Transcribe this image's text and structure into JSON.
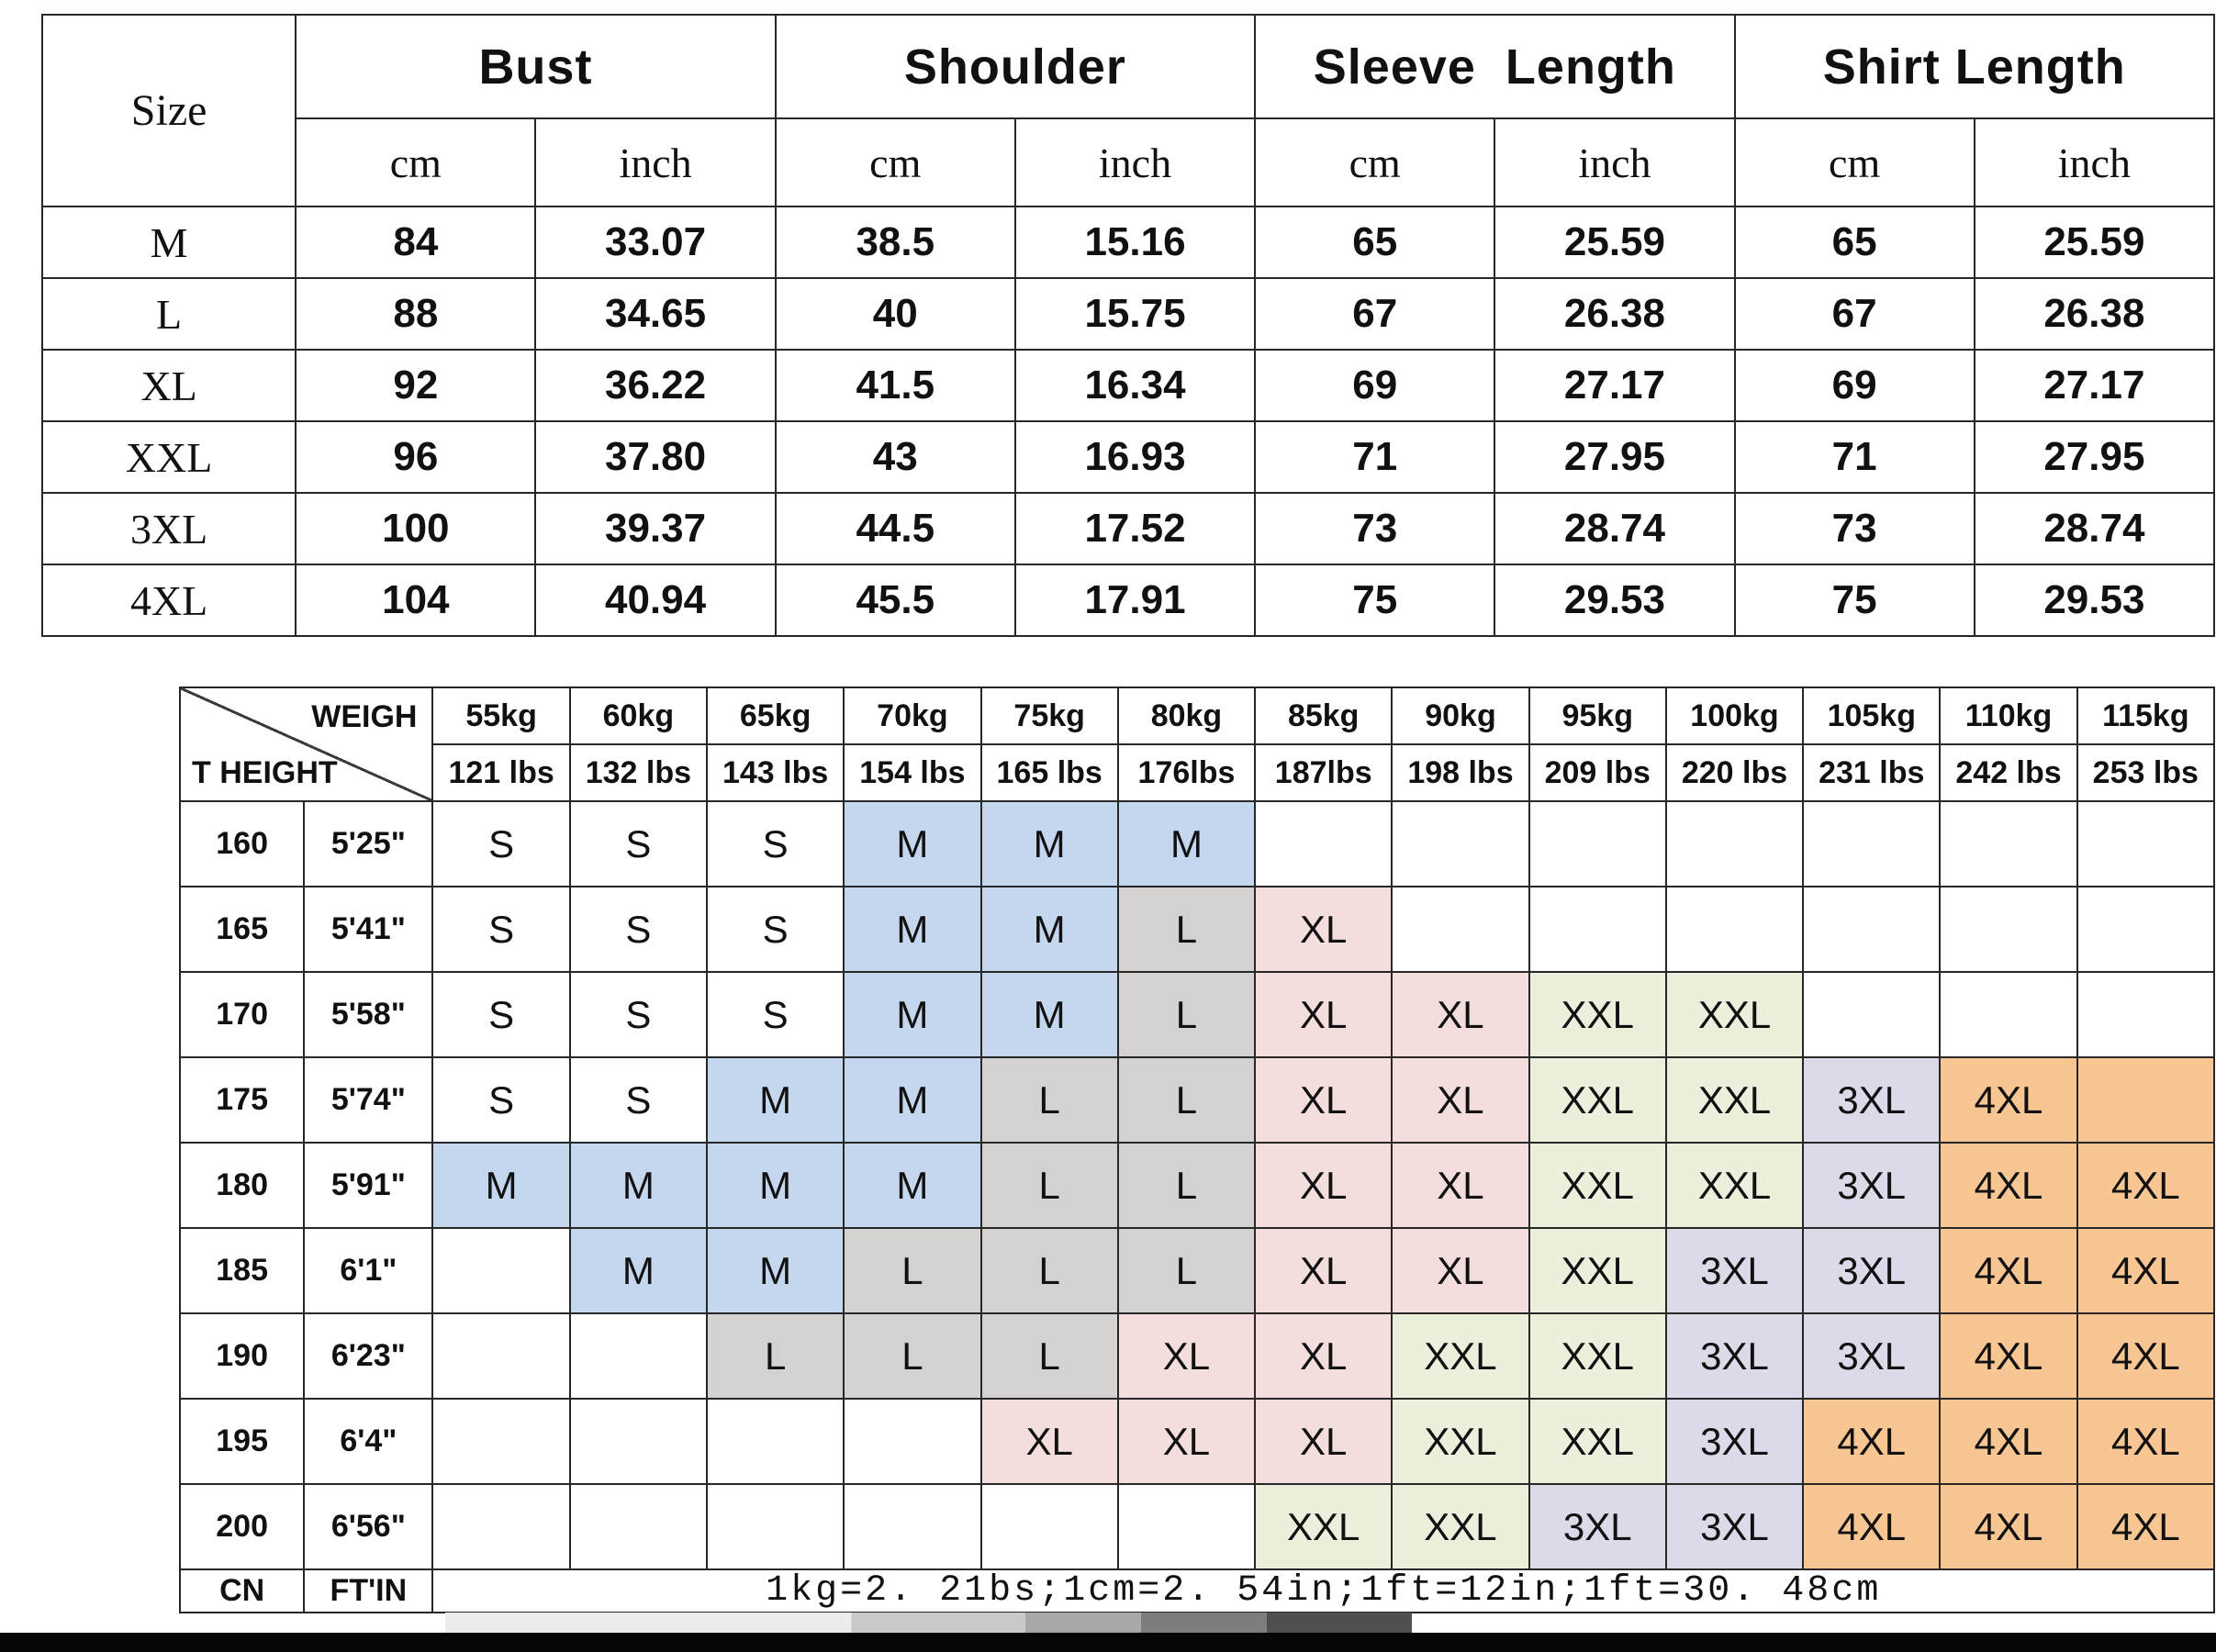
{
  "colors": {
    "blue": "#c5d7ee",
    "gray": "#d3d2d0",
    "pink": "#f3dedd",
    "green": "#ebf0dc",
    "lav": "#dcdae9",
    "orange": "#f7c693"
  },
  "size_table": {
    "corner_label": "Size",
    "groups": [
      "Bust",
      "Shoulder",
      "Sleeve  Length",
      "Shirt Length"
    ],
    "units": [
      "cm",
      "inch",
      "cm",
      "inch",
      "cm",
      "inch",
      "cm",
      "inch"
    ],
    "rows": [
      {
        "size": "M",
        "values": [
          "84",
          "33.07",
          "38.5",
          "15.16",
          "65",
          "25.59",
          "65",
          "25.59"
        ]
      },
      {
        "size": "L",
        "values": [
          "88",
          "34.65",
          "40",
          "15.75",
          "67",
          "26.38",
          "67",
          "26.38"
        ]
      },
      {
        "size": "XL",
        "values": [
          "92",
          "36.22",
          "41.5",
          "16.34",
          "69",
          "27.17",
          "69",
          "27.17"
        ]
      },
      {
        "size": "XXL",
        "values": [
          "96",
          "37.80",
          "43",
          "16.93",
          "71",
          "27.95",
          "71",
          "27.95"
        ]
      },
      {
        "size": "3XL",
        "values": [
          "100",
          "39.37",
          "44.5",
          "17.52",
          "73",
          "28.74",
          "73",
          "28.74"
        ]
      },
      {
        "size": "4XL",
        "values": [
          "104",
          "40.94",
          "45.5",
          "17.91",
          "75",
          "29.53",
          "75",
          "29.53"
        ]
      }
    ]
  },
  "fit_table": {
    "corner_top": "WEIGH",
    "corner_bottom": "T HEIGHT",
    "weights_kg": [
      "55kg",
      "60kg",
      "65kg",
      "70kg",
      "75kg",
      "80kg",
      "85kg",
      "90kg",
      "95kg",
      "100kg",
      "105kg",
      "110kg",
      "115kg"
    ],
    "weights_lbs": [
      "121 lbs",
      "132 lbs",
      "143 lbs",
      "154 lbs",
      "165 lbs",
      "176lbs",
      "187lbs",
      "198 lbs",
      "209 lbs",
      "220 lbs",
      "231 lbs",
      "242 lbs",
      "253 lbs"
    ],
    "rows": [
      {
        "height_cm": "160",
        "height_ft": "5'25\"",
        "cells": [
          {
            "t": "S",
            "c": ""
          },
          {
            "t": "S",
            "c": ""
          },
          {
            "t": "S",
            "c": ""
          },
          {
            "t": "M",
            "c": "blue"
          },
          {
            "t": "M",
            "c": "blue"
          },
          {
            "t": "M",
            "c": "blue"
          },
          {
            "t": "",
            "c": ""
          },
          {
            "t": "",
            "c": ""
          },
          {
            "t": "",
            "c": ""
          },
          {
            "t": "",
            "c": ""
          },
          {
            "t": "",
            "c": ""
          },
          {
            "t": "",
            "c": ""
          },
          {
            "t": "",
            "c": ""
          }
        ]
      },
      {
        "height_cm": "165",
        "height_ft": "5'41\"",
        "cells": [
          {
            "t": "S",
            "c": ""
          },
          {
            "t": "S",
            "c": ""
          },
          {
            "t": "S",
            "c": ""
          },
          {
            "t": "M",
            "c": "blue"
          },
          {
            "t": "M",
            "c": "blue"
          },
          {
            "t": "L",
            "c": "gray"
          },
          {
            "t": "XL",
            "c": "pink"
          },
          {
            "t": "",
            "c": ""
          },
          {
            "t": "",
            "c": ""
          },
          {
            "t": "",
            "c": ""
          },
          {
            "t": "",
            "c": ""
          },
          {
            "t": "",
            "c": ""
          },
          {
            "t": "",
            "c": ""
          }
        ]
      },
      {
        "height_cm": "170",
        "height_ft": "5'58\"",
        "cells": [
          {
            "t": "S",
            "c": ""
          },
          {
            "t": "S",
            "c": ""
          },
          {
            "t": "S",
            "c": ""
          },
          {
            "t": "M",
            "c": "blue"
          },
          {
            "t": "M",
            "c": "blue"
          },
          {
            "t": "L",
            "c": "gray"
          },
          {
            "t": "XL",
            "c": "pink"
          },
          {
            "t": "XL",
            "c": "pink"
          },
          {
            "t": "XXL",
            "c": "green"
          },
          {
            "t": "XXL",
            "c": "green"
          },
          {
            "t": "",
            "c": ""
          },
          {
            "t": "",
            "c": ""
          },
          {
            "t": "",
            "c": ""
          }
        ]
      },
      {
        "height_cm": "175",
        "height_ft": "5'74\"",
        "cells": [
          {
            "t": "S",
            "c": ""
          },
          {
            "t": "S",
            "c": ""
          },
          {
            "t": "M",
            "c": "blue"
          },
          {
            "t": "M",
            "c": "blue"
          },
          {
            "t": "L",
            "c": "gray"
          },
          {
            "t": "L",
            "c": "gray"
          },
          {
            "t": "XL",
            "c": "pink"
          },
          {
            "t": "XL",
            "c": "pink"
          },
          {
            "t": "XXL",
            "c": "green"
          },
          {
            "t": "XXL",
            "c": "green"
          },
          {
            "t": "3XL",
            "c": "lav"
          },
          {
            "t": "4XL",
            "c": "orange"
          },
          {
            "t": "",
            "c": "orange"
          }
        ]
      },
      {
        "height_cm": "180",
        "height_ft": "5'91\"",
        "cells": [
          {
            "t": "M",
            "c": "blue"
          },
          {
            "t": "M",
            "c": "blue"
          },
          {
            "t": "M",
            "c": "blue"
          },
          {
            "t": "M",
            "c": "blue"
          },
          {
            "t": "L",
            "c": "gray"
          },
          {
            "t": "L",
            "c": "gray"
          },
          {
            "t": "XL",
            "c": "pink"
          },
          {
            "t": "XL",
            "c": "pink"
          },
          {
            "t": "XXL",
            "c": "green"
          },
          {
            "t": "XXL",
            "c": "green"
          },
          {
            "t": "3XL",
            "c": "lav"
          },
          {
            "t": "4XL",
            "c": "orange"
          },
          {
            "t": "4XL",
            "c": "orange"
          }
        ]
      },
      {
        "height_cm": "185",
        "height_ft": "6'1\"",
        "cells": [
          {
            "t": "",
            "c": ""
          },
          {
            "t": "M",
            "c": "blue"
          },
          {
            "t": "M",
            "c": "blue"
          },
          {
            "t": "L",
            "c": "gray"
          },
          {
            "t": "L",
            "c": "gray"
          },
          {
            "t": "L",
            "c": "gray"
          },
          {
            "t": "XL",
            "c": "pink"
          },
          {
            "t": "XL",
            "c": "pink"
          },
          {
            "t": "XXL",
            "c": "green"
          },
          {
            "t": "3XL",
            "c": "lav"
          },
          {
            "t": "3XL",
            "c": "lav"
          },
          {
            "t": "4XL",
            "c": "orange"
          },
          {
            "t": "4XL",
            "c": "orange"
          }
        ]
      },
      {
        "height_cm": "190",
        "height_ft": "6'23\"",
        "cells": [
          {
            "t": "",
            "c": ""
          },
          {
            "t": "",
            "c": ""
          },
          {
            "t": "L",
            "c": "gray"
          },
          {
            "t": "L",
            "c": "gray"
          },
          {
            "t": "L",
            "c": "gray"
          },
          {
            "t": "XL",
            "c": "pink"
          },
          {
            "t": "XL",
            "c": "pink"
          },
          {
            "t": "XXL",
            "c": "green"
          },
          {
            "t": "XXL",
            "c": "green"
          },
          {
            "t": "3XL",
            "c": "lav"
          },
          {
            "t": "3XL",
            "c": "lav"
          },
          {
            "t": "4XL",
            "c": "orange"
          },
          {
            "t": "4XL",
            "c": "orange"
          }
        ]
      },
      {
        "height_cm": "195",
        "height_ft": "6'4\"",
        "cells": [
          {
            "t": "",
            "c": ""
          },
          {
            "t": "",
            "c": ""
          },
          {
            "t": "",
            "c": ""
          },
          {
            "t": "",
            "c": ""
          },
          {
            "t": "XL",
            "c": "pink"
          },
          {
            "t": "XL",
            "c": "pink"
          },
          {
            "t": "XL",
            "c": "pink"
          },
          {
            "t": "XXL",
            "c": "green"
          },
          {
            "t": "XXL",
            "c": "green"
          },
          {
            "t": "3XL",
            "c": "lav"
          },
          {
            "t": "4XL",
            "c": "orange"
          },
          {
            "t": "4XL",
            "c": "orange"
          },
          {
            "t": "4XL",
            "c": "orange"
          }
        ]
      },
      {
        "height_cm": "200",
        "height_ft": "6'56\"",
        "cells": [
          {
            "t": "",
            "c": ""
          },
          {
            "t": "",
            "c": ""
          },
          {
            "t": "",
            "c": ""
          },
          {
            "t": "",
            "c": ""
          },
          {
            "t": "",
            "c": ""
          },
          {
            "t": "",
            "c": ""
          },
          {
            "t": "XXL",
            "c": "green"
          },
          {
            "t": "XXL",
            "c": "green"
          },
          {
            "t": "3XL",
            "c": "lav"
          },
          {
            "t": "3XL",
            "c": "lav"
          },
          {
            "t": "4XL",
            "c": "orange"
          },
          {
            "t": "4XL",
            "c": "orange"
          },
          {
            "t": "4XL",
            "c": "orange"
          }
        ]
      }
    ],
    "footer": {
      "cn": "CN",
      "ftin": "FT'IN",
      "note": "1kg=2. 21bs;1cm=2. 54in;1ft=12in;1ft=30. 48cm"
    }
  }
}
